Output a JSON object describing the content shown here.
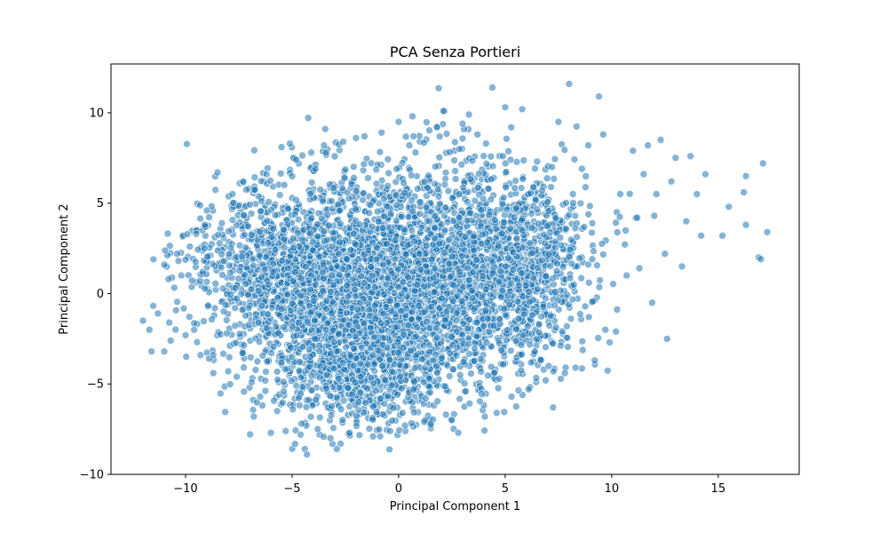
{
  "chart_data": {
    "type": "scatter",
    "title": "PCA Senza Portieri",
    "xlabel": "Principal Component 1",
    "ylabel": "Principal Component 2",
    "xlim": [
      -13.5,
      18.8
    ],
    "ylim": [
      -10,
      12.7
    ],
    "xticks": [
      -10,
      -5,
      0,
      5,
      10,
      15
    ],
    "xtick_labels": [
      "−10",
      "−5",
      "0",
      "5",
      "10",
      "15"
    ],
    "yticks": [
      -10,
      -5,
      0,
      5,
      10
    ],
    "ytick_labels": [
      "−10",
      "−5",
      "0",
      "5",
      "10"
    ],
    "grid": false,
    "marker_color": "#1f77b4",
    "marker_alpha": 0.55,
    "points": [
      [
        -12.0,
        -1.5
      ],
      [
        -11.7,
        -2.0
      ],
      [
        -11.6,
        -3.2
      ],
      [
        -11.3,
        -1.1
      ],
      [
        -11.0,
        1.6
      ],
      [
        -11.0,
        -3.2
      ],
      [
        -10.8,
        0.8
      ],
      [
        -10.7,
        -2.6
      ],
      [
        -10.4,
        2.2
      ],
      [
        -10.2,
        1.0
      ],
      [
        -10.0,
        -2.3
      ],
      [
        -9.8,
        2.6
      ],
      [
        -9.6,
        -2.0
      ],
      [
        -9.5,
        3.3
      ],
      [
        -9.3,
        -3.4
      ],
      [
        -9.1,
        3.8
      ],
      [
        -9.0,
        4.6
      ],
      [
        -8.9,
        -3.6
      ],
      [
        -8.7,
        -4.4
      ],
      [
        -8.5,
        6.7
      ],
      [
        -8.3,
        3.9
      ],
      [
        -8.0,
        -4.3
      ],
      [
        -7.8,
        5.5
      ],
      [
        -7.6,
        -4.6
      ],
      [
        -7.3,
        6.2
      ],
      [
        -7.0,
        -5.2
      ],
      [
        -6.8,
        -6.8
      ],
      [
        -6.5,
        -5.7
      ],
      [
        -6.2,
        6.6
      ],
      [
        -6.0,
        -7.7
      ],
      [
        -5.7,
        -6.5
      ],
      [
        -5.5,
        8.1
      ],
      [
        -5.3,
        -7.6
      ],
      [
        -5.1,
        8.3
      ],
      [
        -4.8,
        7.4
      ],
      [
        -4.6,
        -7.8
      ],
      [
        -4.4,
        -8.6
      ],
      [
        -4.3,
        -8.9
      ],
      [
        -4.1,
        7.8
      ],
      [
        -3.8,
        -7.5
      ],
      [
        -3.5,
        8.2
      ],
      [
        -3.2,
        -8.0
      ],
      [
        -2.9,
        -8.6
      ],
      [
        -2.6,
        8.4
      ],
      [
        -2.3,
        -7.7
      ],
      [
        -2.0,
        8.6
      ],
      [
        -1.6,
        8.7
      ],
      [
        -1.2,
        -7.9
      ],
      [
        -0.8,
        8.9
      ],
      [
        -0.4,
        -7.6
      ],
      [
        0.0,
        9.5
      ],
      [
        0.3,
        -7.3
      ],
      [
        0.7,
        8.7
      ],
      [
        1.2,
        -7.1
      ],
      [
        1.5,
        -7.2
      ],
      [
        1.8,
        9.2
      ],
      [
        2.1,
        10.1
      ],
      [
        2.5,
        -7.0
      ],
      [
        2.8,
        -7.7
      ],
      [
        3.0,
        9.4
      ],
      [
        3.3,
        9.9
      ],
      [
        3.7,
        8.8
      ],
      [
        4.1,
        8.3
      ],
      [
        4.4,
        11.4
      ],
      [
        4.6,
        -6.6
      ],
      [
        5.0,
        10.3
      ],
      [
        5.3,
        -5.7
      ],
      [
        5.8,
        10.2
      ],
      [
        6.1,
        -5.3
      ],
      [
        6.5,
        7.3
      ],
      [
        6.9,
        -4.8
      ],
      [
        7.2,
        7.0
      ],
      [
        7.5,
        9.5
      ],
      [
        7.8,
        -4.4
      ],
      [
        8.0,
        11.6
      ],
      [
        8.3,
        -4.1
      ],
      [
        8.6,
        6.9
      ],
      [
        8.9,
        8.2
      ],
      [
        9.2,
        -3.7
      ],
      [
        9.4,
        10.9
      ],
      [
        9.6,
        8.8
      ],
      [
        9.9,
        -2.7
      ],
      [
        10.2,
        -2.1
      ],
      [
        10.4,
        5.5
      ],
      [
        10.7,
        1.0
      ],
      [
        11.0,
        7.9
      ],
      [
        11.2,
        4.2
      ],
      [
        11.5,
        6.6
      ],
      [
        11.7,
        8.2
      ],
      [
        11.9,
        -0.5
      ],
      [
        12.1,
        5.5
      ],
      [
        12.3,
        8.5
      ],
      [
        12.5,
        2.2
      ],
      [
        12.6,
        -2.5
      ],
      [
        12.8,
        6.2
      ],
      [
        13.0,
        7.5
      ],
      [
        13.3,
        1.5
      ],
      [
        13.5,
        4.0
      ],
      [
        13.7,
        7.6
      ],
      [
        14.0,
        5.5
      ],
      [
        14.2,
        3.2
      ],
      [
        14.4,
        6.6
      ],
      [
        15.2,
        3.2
      ],
      [
        15.5,
        4.8
      ],
      [
        16.2,
        5.6
      ],
      [
        16.3,
        6.5
      ],
      [
        16.3,
        3.8
      ],
      [
        16.9,
        2.0
      ],
      [
        17.0,
        1.9
      ],
      [
        17.1,
        7.2
      ],
      [
        17.3,
        3.4
      ],
      [
        -8.7,
        -3.4
      ],
      [
        -6.9,
        -4.9
      ],
      [
        -3.9,
        6.9
      ],
      [
        0.5,
        8.2
      ],
      [
        4.9,
        7.6
      ],
      [
        9.7,
        -2.0
      ],
      [
        11.3,
        1.4
      ],
      [
        12.0,
        4.3
      ]
    ],
    "cloud": {
      "count": 5200,
      "clusters": [
        {
          "cx": -5.5,
          "cy": 1.4,
          "sx": 2.2,
          "sy": 2.3,
          "w": 0.18
        },
        {
          "cx": -2.2,
          "cy": -1.2,
          "sx": 2.1,
          "sy": 3.0,
          "w": 0.22
        },
        {
          "cx": 0.0,
          "cy": 1.0,
          "sx": 2.6,
          "sy": 2.9,
          "w": 0.24
        },
        {
          "cx": 3.3,
          "cy": 1.3,
          "sx": 2.2,
          "sy": 2.8,
          "w": 0.2
        },
        {
          "cx": 6.3,
          "cy": 1.0,
          "sx": 1.6,
          "sy": 2.6,
          "w": 0.1
        },
        {
          "cx": -1.2,
          "cy": -4.6,
          "sx": 2.3,
          "sy": 1.3,
          "w": 0.06
        }
      ]
    }
  }
}
